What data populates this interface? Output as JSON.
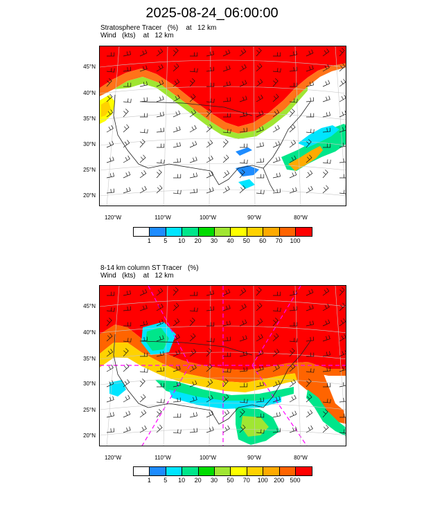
{
  "title": "2025-08-24_06:00:00",
  "panels": [
    {
      "subtitle1": "Stratosphere Tracer   (%)    at   12 km",
      "subtitle2": "Wind   (kts)    at   12 km",
      "lat_labels": [
        "45°N",
        "40°N",
        "35°N",
        "30°N",
        "25°N",
        "20°N"
      ],
      "lon_labels": [
        "120°W",
        "110°W",
        "100°W",
        "90°W",
        "80°W"
      ],
      "colorbar_labels": [
        "1",
        "5",
        "10",
        "20",
        "30",
        "40",
        "50",
        "60",
        "70",
        "100"
      ],
      "colors": [
        "#ffffff",
        "#1e8cff",
        "#00e5ff",
        "#00e68a",
        "#00dc00",
        "#a0e632",
        "#ffff00",
        "#ffd200",
        "#ffaa00",
        "#ff6400",
        "#ff0000"
      ]
    },
    {
      "subtitle1": "8-14 km column ST Tracer   (%)",
      "subtitle2": "Wind   (kts)    at   12 km",
      "lat_labels": [
        "45°N",
        "40°N",
        "35°N",
        "30°N",
        "25°N",
        "20°N"
      ],
      "lon_labels": [
        "120°W",
        "110°W",
        "100°W",
        "90°W",
        "80°W"
      ],
      "colorbar_labels": [
        "1",
        "5",
        "10",
        "20",
        "30",
        "50",
        "70",
        "100",
        "200",
        "500"
      ],
      "colors": [
        "#ffffff",
        "#1e8cff",
        "#00e5ff",
        "#00e68a",
        "#00dc00",
        "#a0e632",
        "#ffff00",
        "#ffd200",
        "#ffaa00",
        "#ff6400",
        "#ff0000"
      ]
    }
  ]
}
